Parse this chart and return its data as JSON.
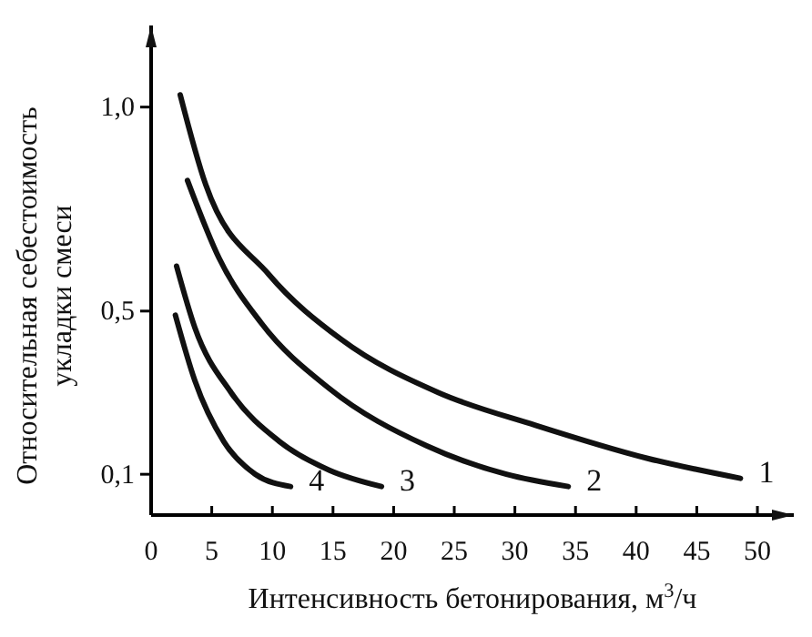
{
  "chart_data": {
    "type": "line",
    "xlabel": "Интенсивность бетонирования, м$^{3}$/ч",
    "ylabel": "Относительная себестоимость\nукладки смеси",
    "xlim": [
      0,
      53
    ],
    "ylim": [
      0,
      1.2
    ],
    "xticks": [
      0,
      5,
      10,
      15,
      20,
      25,
      30,
      35,
      40,
      45,
      50
    ],
    "yticks": [
      {
        "value": 0.1,
        "label": "0,1"
      },
      {
        "value": 0.5,
        "label": "0,5"
      },
      {
        "value": 1.0,
        "label": "1,0"
      }
    ],
    "grid": false,
    "marker": "none",
    "line_style": "solid",
    "series": [
      {
        "name": "1",
        "color": "#111111",
        "x": [
          2.4,
          4.5,
          9.7,
          15.7,
          23.7,
          31.7,
          40.8,
          48.6
        ],
        "values": [
          1.03,
          0.81,
          0.59,
          0.43,
          0.3,
          0.22,
          0.14,
          0.09
        ]
      },
      {
        "name": "2",
        "color": "#111111",
        "x": [
          3.0,
          5.6,
          9.1,
          14.7,
          22.7,
          29.3,
          34.4
        ],
        "values": [
          0.82,
          0.63,
          0.47,
          0.31,
          0.17,
          0.1,
          0.07
        ]
      },
      {
        "name": "3",
        "color": "#111111",
        "x": [
          2.1,
          3.6,
          6.6,
          10.6,
          14.7,
          19.0
        ],
        "values": [
          0.61,
          0.46,
          0.3,
          0.18,
          0.11,
          0.07
        ]
      },
      {
        "name": "4",
        "color": "#111111",
        "x": [
          2.0,
          3.6,
          6.0,
          8.6,
          11.5
        ],
        "values": [
          0.49,
          0.33,
          0.18,
          0.1,
          0.07
        ]
      }
    ]
  }
}
